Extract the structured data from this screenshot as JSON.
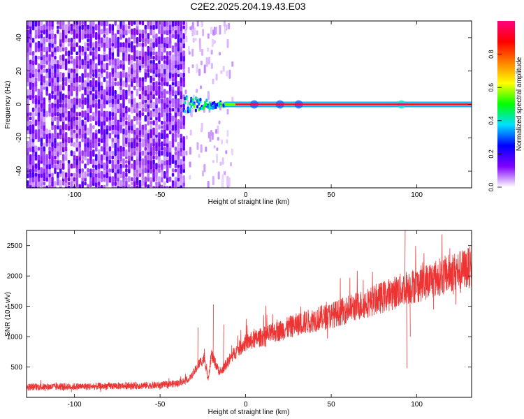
{
  "title": "C2E2.2025.204.19.43.E03",
  "chart_data": [
    {
      "type": "heatmap",
      "xlabel": "Height of straight line (km)",
      "ylabel": "Frequency (Hz)",
      "xlim": [
        -128,
        132
      ],
      "ylim": [
        -50,
        50
      ],
      "x_ticks": [
        -100,
        -50,
        0,
        50,
        100
      ],
      "y_ticks": [
        -40,
        -20,
        0,
        20,
        40
      ],
      "colorbar": {
        "label": "Normalized spectral amplitude",
        "range": [
          0,
          1
        ],
        "ticks": [
          "0.0",
          "0.2",
          "0.4",
          "0.6",
          "0.8"
        ],
        "colormap": [
          "#ffffff",
          "#8000ff",
          "#0000ff",
          "#00e0ff",
          "#00ff00",
          "#ffff00",
          "#ff8000",
          "#ff0000",
          "#ff0080"
        ]
      },
      "regions": [
        {
          "x_range": [
            -128,
            -36
          ],
          "description": "broadband noise",
          "amplitude": 0.25
        },
        {
          "x_range": [
            -36,
            -12
          ],
          "frequency": 0,
          "amplitude": 0.45
        },
        {
          "x_range": [
            -12,
            132
          ],
          "frequency": 0,
          "amplitude": 0.95
        }
      ]
    },
    {
      "type": "line",
      "xlabel": "Height of straight line (km)",
      "ylabel": "SNR (10 * v/v)",
      "xlim": [
        -128,
        132
      ],
      "ylim": [
        0,
        2750
      ],
      "x_ticks": [
        -100,
        -50,
        0,
        50,
        100
      ],
      "y_ticks": [
        500,
        1000,
        1500,
        2000,
        2500
      ],
      "line_color": "#ee3333",
      "series": [
        {
          "x": [
            -128,
            -110,
            -90,
            -70,
            -50,
            -40,
            -33,
            -30,
            -27,
            -24,
            -22,
            -20,
            -15,
            -10,
            -5,
            0,
            10,
            20,
            30,
            40,
            50,
            60,
            70,
            80,
            90,
            95,
            100,
            110,
            120,
            132
          ],
          "y": [
            170,
            175,
            180,
            190,
            200,
            230,
            300,
            420,
            560,
            650,
            300,
            700,
            400,
            600,
            780,
            900,
            1000,
            1100,
            1200,
            1280,
            1350,
            1450,
            1550,
            1650,
            1760,
            1820,
            1850,
            1950,
            2050,
            2150
          ]
        }
      ]
    }
  ]
}
